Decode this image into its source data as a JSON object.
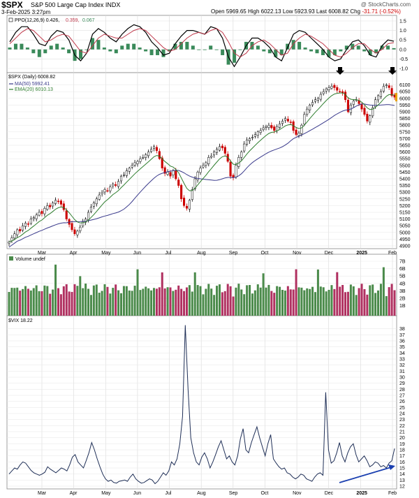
{
  "header": {
    "symbol": "$SPX",
    "name": "S&P 500 Large Cap Index  INDX",
    "date": "3-Feb-2025 3:27pm",
    "credit": "@ StockCharts.com",
    "open_label": "Open",
    "open": "5969.65",
    "high_label": "High",
    "high": "6022.13",
    "low_label": "Low",
    "low": "5923.93",
    "last_label": "Last",
    "last": "6008.82",
    "chg_label": "Chg",
    "chg": "-31.71 (-0.52%)"
  },
  "colors": {
    "up": "#000000",
    "down": "#cc0000",
    "ma50": "#3a3a8c",
    "ema20": "#2e7d2e",
    "ppo_line": "#000000",
    "ppo_signal": "#c0394b",
    "ppo_hist": "#3a8a5a",
    "vol_up": "#4a8a4a",
    "vol_down": "#b03060",
    "vix": "#1f2f57",
    "arrow": "#1a3fb0"
  },
  "chart_data": [
    {
      "panel": "ppo",
      "type": "line",
      "legend": [
        "PPO(12,26,9) 0.426,",
        "0.359,",
        "0.067"
      ],
      "ylim": [
        -1.0,
        1.5
      ],
      "yticks": [
        "1.5",
        "1.0",
        "0.5",
        "0.0",
        "-0.5",
        "-1.0"
      ],
      "series": [
        {
          "name": "PPO",
          "values": [
            0.4,
            0.9,
            1.2,
            1.2,
            0.8,
            0.3,
            0.2,
            0.7,
            1.0,
            0.9,
            0.5,
            -0.3,
            -0.6,
            -0.2,
            0.8,
            1.1,
            0.9,
            0.6,
            0.4,
            0.8,
            1.1,
            1.3,
            1.2,
            0.9,
            0.4,
            0.1,
            -0.3,
            -0.2,
            0.3,
            0.7,
            1.0,
            1.0,
            0.9,
            0.8,
            1.2,
            1.1,
            0.6,
            -0.4,
            -0.9,
            -0.4,
            0.2,
            0.6,
            0.6,
            0.4,
            0.1,
            -0.4,
            -0.6,
            0.1,
            0.8,
            1.0,
            0.9,
            0.6,
            0.3,
            0.0,
            -0.4,
            -0.6,
            -0.5,
            0.0,
            0.4,
            0.5,
            0.2,
            -0.3,
            -0.4,
            0.2,
            0.5,
            0.43
          ]
        },
        {
          "name": "Signal",
          "values": [
            0.3,
            0.6,
            0.9,
            1.1,
            1.0,
            0.7,
            0.4,
            0.5,
            0.7,
            0.8,
            0.7,
            0.3,
            -0.1,
            -0.2,
            0.2,
            0.6,
            0.8,
            0.7,
            0.6,
            0.6,
            0.8,
            1.0,
            1.1,
            1.0,
            0.7,
            0.4,
            0.1,
            -0.1,
            0.0,
            0.3,
            0.6,
            0.8,
            0.9,
            0.8,
            1.0,
            1.1,
            0.9,
            0.4,
            -0.2,
            -0.4,
            -0.2,
            0.2,
            0.4,
            0.5,
            0.3,
            0.0,
            -0.3,
            -0.2,
            0.3,
            0.6,
            0.8,
            0.7,
            0.5,
            0.3,
            0.0,
            -0.3,
            -0.4,
            -0.2,
            0.1,
            0.3,
            0.3,
            0.0,
            -0.2,
            0.0,
            0.3,
            0.36
          ]
        }
      ]
    },
    {
      "panel": "price",
      "type": "bar",
      "legend": [
        "$SPX (Daily) 6008.82",
        "MA(50) 5992.41",
        "EMA(20) 6010.13"
      ],
      "ylim": [
        4900,
        6150
      ],
      "yticks": [
        "6100",
        "6050",
        "6000",
        "5950",
        "5900",
        "5850",
        "5800",
        "5750",
        "5700",
        "5650",
        "5600",
        "5550",
        "5500",
        "5450",
        "5400",
        "5350",
        "5300",
        "5250",
        "5200",
        "5150",
        "5100",
        "5050",
        "5000",
        "4950",
        "4900"
      ],
      "close": [
        4930,
        4960,
        4990,
        5020,
        5010,
        5050,
        5070,
        5060,
        5100,
        5110,
        5130,
        5150,
        5140,
        5180,
        5200,
        5190,
        5220,
        5240,
        5230,
        5210,
        5170,
        5100,
        5060,
        5020,
        4990,
        5010,
        5040,
        5080,
        5100,
        5150,
        5190,
        5220,
        5250,
        5280,
        5300,
        5320,
        5310,
        5340,
        5360,
        5350,
        5380,
        5420,
        5430,
        5460,
        5480,
        5500,
        5520,
        5530,
        5550,
        5560,
        5580,
        5600,
        5620,
        5640,
        5610,
        5550,
        5480,
        5440,
        5450,
        5420,
        5460,
        5400,
        5350,
        5250,
        5200,
        5180,
        5240,
        5320,
        5400,
        5450,
        5480,
        5500,
        5520,
        5560,
        5570,
        5600,
        5620,
        5640,
        5630,
        5590,
        5530,
        5420,
        5410,
        5500,
        5560,
        5600,
        5660,
        5690,
        5700,
        5710,
        5730,
        5750,
        5760,
        5780,
        5790,
        5800,
        5780,
        5760,
        5790,
        5810,
        5830,
        5850,
        5830,
        5820,
        5760,
        5730,
        5740,
        5800,
        5880,
        5920,
        5950,
        5970,
        5990,
        6000,
        6030,
        6050,
        6070,
        6080,
        6090,
        6080,
        6060,
        6050,
        6040,
        5990,
        5900,
        5950,
        5980,
        5990,
        5960,
        5920,
        5880,
        5830,
        5870,
        5930,
        5990,
        6020,
        6050,
        6090,
        6100,
        6080,
        6020,
        6008.82
      ]
    },
    {
      "panel": "volume",
      "type": "bar",
      "legend": [
        "Volume undef"
      ],
      "yticks": [
        "7B",
        "6B",
        "5B",
        "4B",
        "3B",
        "2B",
        "1B"
      ]
    },
    {
      "panel": "vix",
      "type": "line",
      "legend": [
        "$VIX 18.22"
      ],
      "ylim": [
        12,
        39
      ],
      "yticks": [
        "38",
        "37",
        "36",
        "35",
        "34",
        "33",
        "32",
        "31",
        "30",
        "29",
        "28",
        "27",
        "26",
        "25",
        "24",
        "23",
        "22",
        "21",
        "20",
        "19",
        "18",
        "17",
        "16",
        "15",
        "14",
        "13",
        "12"
      ],
      "values": [
        14.0,
        14.5,
        15.0,
        14.8,
        15.5,
        16.0,
        15.8,
        15.2,
        14.6,
        14.2,
        14.0,
        13.8,
        14.0,
        14.3,
        15.2,
        14.8,
        14.5,
        14.2,
        14.6,
        15.0,
        14.8,
        14.5,
        15.5,
        16.8,
        17.2,
        16.0,
        15.5,
        15.0,
        16.2,
        17.5,
        19.2,
        18.0,
        16.5,
        15.2,
        14.0,
        13.2,
        12.8,
        13.0,
        12.6,
        12.5,
        12.8,
        12.9,
        13.0,
        12.8,
        13.5,
        14.0,
        13.2,
        12.8,
        12.5,
        12.6,
        12.9,
        13.2,
        13.0,
        12.4,
        12.8,
        13.5,
        14.2,
        13.8,
        14.5,
        16.0,
        15.5,
        16.5,
        19.0,
        23.5,
        38.6,
        28.0,
        20.0,
        17.5,
        16.0,
        15.5,
        16.8,
        17.5,
        16.5,
        15.0,
        16.0,
        17.2,
        18.5,
        19.5,
        18.0,
        16.5,
        17.0,
        16.0,
        15.5,
        17.0,
        19.8,
        21.5,
        18.0,
        17.5,
        19.2,
        20.5,
        21.8,
        20.0,
        18.5,
        17.0,
        19.0,
        20.5,
        16.5,
        15.8,
        15.2,
        14.8,
        15.0,
        14.2,
        14.0,
        13.5,
        13.2,
        13.5,
        14.0,
        13.8,
        13.2,
        13.0,
        12.8,
        13.5,
        14.0,
        14.2,
        13.8,
        27.5,
        18.0,
        15.8,
        16.2,
        17.5,
        19.2,
        17.0,
        16.0,
        17.5,
        18.5,
        19.0,
        17.2,
        16.0,
        16.5,
        17.0,
        16.2,
        15.2,
        15.5,
        16.0,
        15.8,
        15.2,
        15.4,
        15.0,
        15.8,
        16.2,
        18.22
      ]
    }
  ],
  "x_axis": {
    "labels": [
      "Mar",
      "Apr",
      "May",
      "Jun",
      "Jul",
      "Aug",
      "Sep",
      "Oct",
      "Nov",
      "Dec",
      "2025",
      "Feb"
    ]
  }
}
